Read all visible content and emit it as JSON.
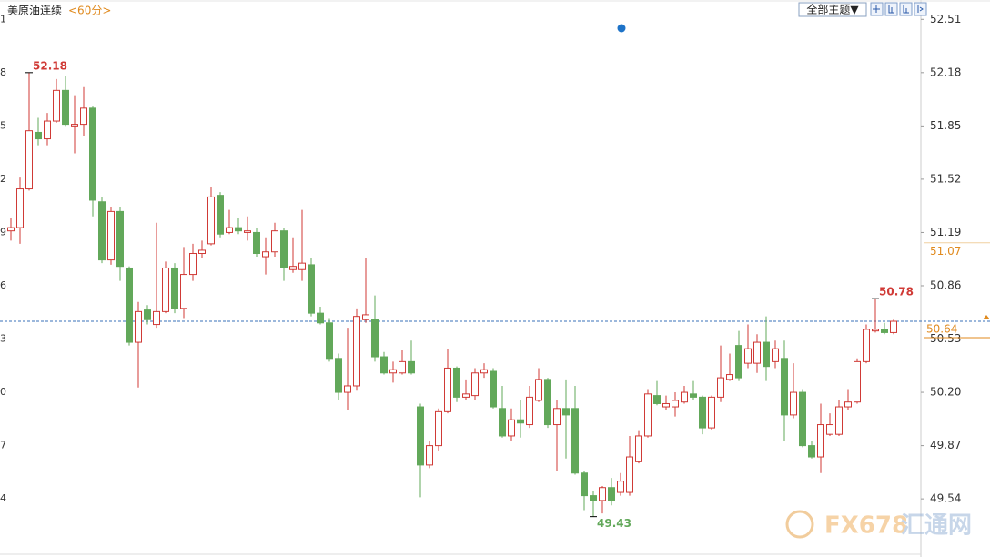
{
  "chart_data": {
    "type": "candlestick",
    "title": "美原油连续",
    "period": "<60分>",
    "up_color": "#d03a36",
    "down_color": "#62a85a",
    "grid": false,
    "ylim": [
      49.18,
      52.63
    ],
    "yticks": [
      52.51,
      52.18,
      51.85,
      51.52,
      51.19,
      50.86,
      50.53,
      {
        "value": 50.2,
        "label": "50.20"
      },
      49.87,
      49.54
    ],
    "left_tick_labels": [
      "1",
      "8",
      "5",
      "2",
      "9",
      "6",
      "3",
      "0",
      "7",
      "4"
    ],
    "marked_price": 51.07,
    "last_price": 50.64,
    "open": [
      51.2,
      51.22,
      51.46,
      51.81,
      51.77,
      51.88,
      52.07,
      51.85,
      51.86,
      51.96,
      51.38,
      51.02,
      51.32,
      50.97,
      50.51,
      50.71,
      50.62,
      50.7,
      50.97,
      50.72,
      50.93,
      51.06,
      51.12,
      51.42,
      51.19,
      51.22,
      51.19,
      51.19,
      51.04,
      51.07,
      51.2,
      50.96,
      50.96,
      50.99,
      50.69,
      50.63,
      50.41,
      50.2,
      50.24,
      50.65,
      50.65,
      50.42,
      50.32,
      50.32,
      50.39,
      50.11,
      49.75,
      49.87,
      50.08,
      50.35,
      50.17,
      50.18,
      50.32,
      50.33,
      50.1,
      49.93,
      50.03,
      50.0,
      50.15,
      50.28,
      50.0,
      50.1,
      50.1,
      49.7,
      49.56,
      49.53,
      49.61,
      49.58,
      49.58,
      49.77,
      49.93,
      50.18,
      50.11,
      50.11,
      50.14,
      50.19,
      50.17,
      49.98,
      50.17,
      50.28,
      50.49,
      50.38,
      50.38,
      50.51,
      50.39,
      50.41,
      50.06,
      50.2,
      49.87,
      49.8,
      49.94,
      49.94,
      50.11,
      50.14,
      50.39,
      50.58,
      50.59,
      50.57
    ],
    "high": [
      51.28,
      51.53,
      52.18,
      51.9,
      51.93,
      52.14,
      52.16,
      52.04,
      52.09,
      51.97,
      51.41,
      51.35,
      51.35,
      50.98,
      50.76,
      50.74,
      51.25,
      51.01,
      51.0,
      51.1,
      51.12,
      51.14,
      51.47,
      51.44,
      51.33,
      51.28,
      51.29,
      51.22,
      51.16,
      51.25,
      51.22,
      51.16,
      51.33,
      51.03,
      50.73,
      50.66,
      50.44,
      50.6,
      50.72,
      51.03,
      50.8,
      50.45,
      50.39,
      50.46,
      50.52,
      50.13,
      49.9,
      50.1,
      50.47,
      50.36,
      50.28,
      50.35,
      50.38,
      50.35,
      50.24,
      50.1,
      50.15,
      50.24,
      50.35,
      50.29,
      50.15,
      50.28,
      50.24,
      49.71,
      49.59,
      49.62,
      49.67,
      49.7,
      49.93,
      49.96,
      50.22,
      50.27,
      50.18,
      50.2,
      50.24,
      50.27,
      50.18,
      50.18,
      50.49,
      50.44,
      50.58,
      50.62,
      50.56,
      50.67,
      50.52,
      50.52,
      50.38,
      50.22,
      49.9,
      50.13,
      50.07,
      50.15,
      50.22,
      50.41,
      50.62,
      50.78,
      50.63,
      50.65
    ],
    "low": [
      51.14,
      51.12,
      51.45,
      51.73,
      51.73,
      51.87,
      51.85,
      51.68,
      51.79,
      51.29,
      51.0,
      50.99,
      50.89,
      50.49,
      50.23,
      50.62,
      50.6,
      50.69,
      50.69,
      50.66,
      50.89,
      51.03,
      51.11,
      51.16,
      51.18,
      51.18,
      51.14,
      51.04,
      50.93,
      51.04,
      50.89,
      50.94,
      50.89,
      50.67,
      50.62,
      50.39,
      50.15,
      50.09,
      50.21,
      50.63,
      50.39,
      50.31,
      50.26,
      50.31,
      50.31,
      49.55,
      49.73,
      49.84,
      50.07,
      50.14,
      50.15,
      50.15,
      50.29,
      50.1,
      49.92,
      49.9,
      49.92,
      49.98,
      50.14,
      49.98,
      49.71,
      49.79,
      49.69,
      49.47,
      49.43,
      49.45,
      49.5,
      49.56,
      49.56,
      49.76,
      49.92,
      50.12,
      50.09,
      50.05,
      50.13,
      50.15,
      49.94,
      49.97,
      50.14,
      50.27,
      50.27,
      50.35,
      50.32,
      50.27,
      50.35,
      49.9,
      50.04,
      49.86,
      49.79,
      49.7,
      49.93,
      49.93,
      50.09,
      50.13,
      50.38,
      50.57,
      50.56,
      50.56
    ],
    "close": [
      51.22,
      51.46,
      51.82,
      51.77,
      51.88,
      52.07,
      51.86,
      51.86,
      51.96,
      51.39,
      51.02,
      51.32,
      50.98,
      50.51,
      50.7,
      50.65,
      50.7,
      50.97,
      50.72,
      50.93,
      51.06,
      51.08,
      51.41,
      51.18,
      51.22,
      51.2,
      51.2,
      51.06,
      51.07,
      51.2,
      50.97,
      50.98,
      51.0,
      50.69,
      50.63,
      50.41,
      50.2,
      50.24,
      50.67,
      50.68,
      50.42,
      50.32,
      50.34,
      50.39,
      50.32,
      49.75,
      49.87,
      50.08,
      50.35,
      50.17,
      50.19,
      50.32,
      50.34,
      50.11,
      49.93,
      50.03,
      50.01,
      50.17,
      50.28,
      50.0,
      50.1,
      50.06,
      49.7,
      49.56,
      49.53,
      49.61,
      49.53,
      49.65,
      49.8,
      49.93,
      50.19,
      50.13,
      50.13,
      50.15,
      50.2,
      50.17,
      49.98,
      50.17,
      50.29,
      50.31,
      50.29,
      50.47,
      50.51,
      50.36,
      50.47,
      50.06,
      50.2,
      49.87,
      49.8,
      50.0,
      50.0,
      50.11,
      50.14,
      50.39,
      50.59,
      50.59,
      50.57,
      50.64
    ]
  },
  "toolbar": {
    "theme_button": "全部主题▼"
  },
  "watermark": {
    "brand": "FX678",
    "site": "汇通网"
  }
}
